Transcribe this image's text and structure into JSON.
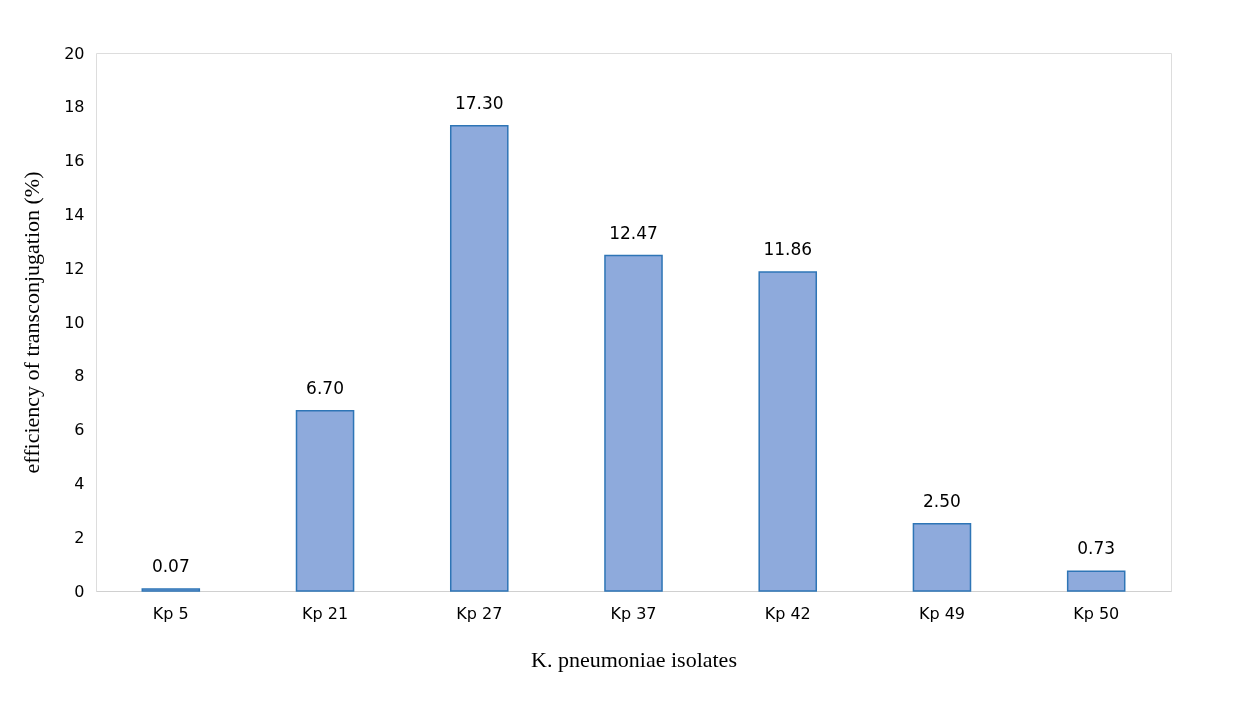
{
  "chart_data": {
    "type": "bar",
    "categories": [
      "Kp 5",
      "Kp 21",
      "Kp 27",
      "Kp 37",
      "Kp 42",
      "Kp 49",
      "Kp 50"
    ],
    "values": [
      0.07,
      6.7,
      17.3,
      12.47,
      11.86,
      2.5,
      0.73
    ],
    "value_labels": [
      "0.07",
      "6.70",
      "17.30",
      "12.47",
      "11.86",
      "2.50",
      "0.73"
    ],
    "color": "#8eaadc",
    "xlabel": "K. pneumoniae isolates",
    "ylabel": "efficiency of transconjugation (%)",
    "ylim": [
      0,
      20
    ],
    "yticks": [
      0,
      2,
      4,
      6,
      8,
      10,
      12,
      14,
      16,
      18,
      20
    ],
    "grid": false
  }
}
